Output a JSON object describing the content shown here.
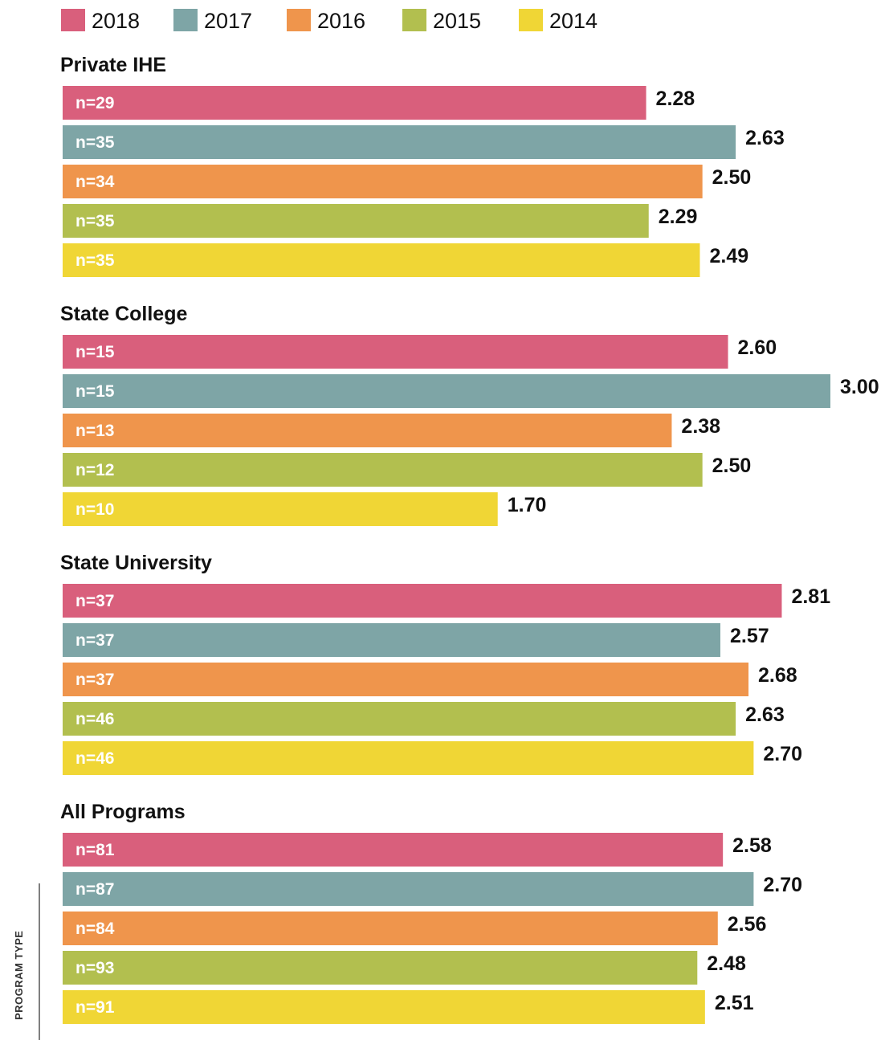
{
  "chart_data": {
    "type": "bar",
    "orientation": "horizontal",
    "axis_title": "PROGRAM TYPE",
    "legend_position": "top",
    "series": [
      {
        "name": "2018",
        "color": "#d95f7c"
      },
      {
        "name": "2017",
        "color": "#7ea5a6"
      },
      {
        "name": "2016",
        "color": "#ef954c"
      },
      {
        "name": "2015",
        "color": "#b2bf4f"
      },
      {
        "name": "2014",
        "color": "#f0d635"
      }
    ],
    "groups": [
      {
        "name": "Private IHE",
        "values": [
          2.28,
          2.63,
          2.5,
          2.29,
          2.49
        ],
        "value_labels": [
          "2.28",
          "2.63",
          "2.50",
          "2.29",
          "2.49"
        ],
        "n_labels": [
          "n=29",
          "n=35",
          "n=34",
          "n=35",
          "n=35"
        ]
      },
      {
        "name": "State College",
        "values": [
          2.6,
          3.0,
          2.38,
          2.5,
          1.7
        ],
        "value_labels": [
          "2.60",
          "3.00",
          "2.38",
          "2.50",
          "1.70"
        ],
        "n_labels": [
          "n=15",
          "n=15",
          "n=13",
          "n=12",
          "n=10"
        ]
      },
      {
        "name": "State University",
        "values": [
          2.81,
          2.57,
          2.68,
          2.63,
          2.7
        ],
        "value_labels": [
          "2.81",
          "2.57",
          "2.68",
          "2.63",
          "2.70"
        ],
        "n_labels": [
          "n=37",
          "n=37",
          "n=37",
          "n=46",
          "n=46"
        ]
      },
      {
        "name": "All Programs",
        "values": [
          2.58,
          2.7,
          2.56,
          2.48,
          2.51
        ],
        "value_labels": [
          "2.58",
          "2.70",
          "2.56",
          "2.48",
          "2.51"
        ],
        "n_labels": [
          "n=81",
          "n=87",
          "n=84",
          "n=93",
          "n=91"
        ]
      }
    ]
  }
}
